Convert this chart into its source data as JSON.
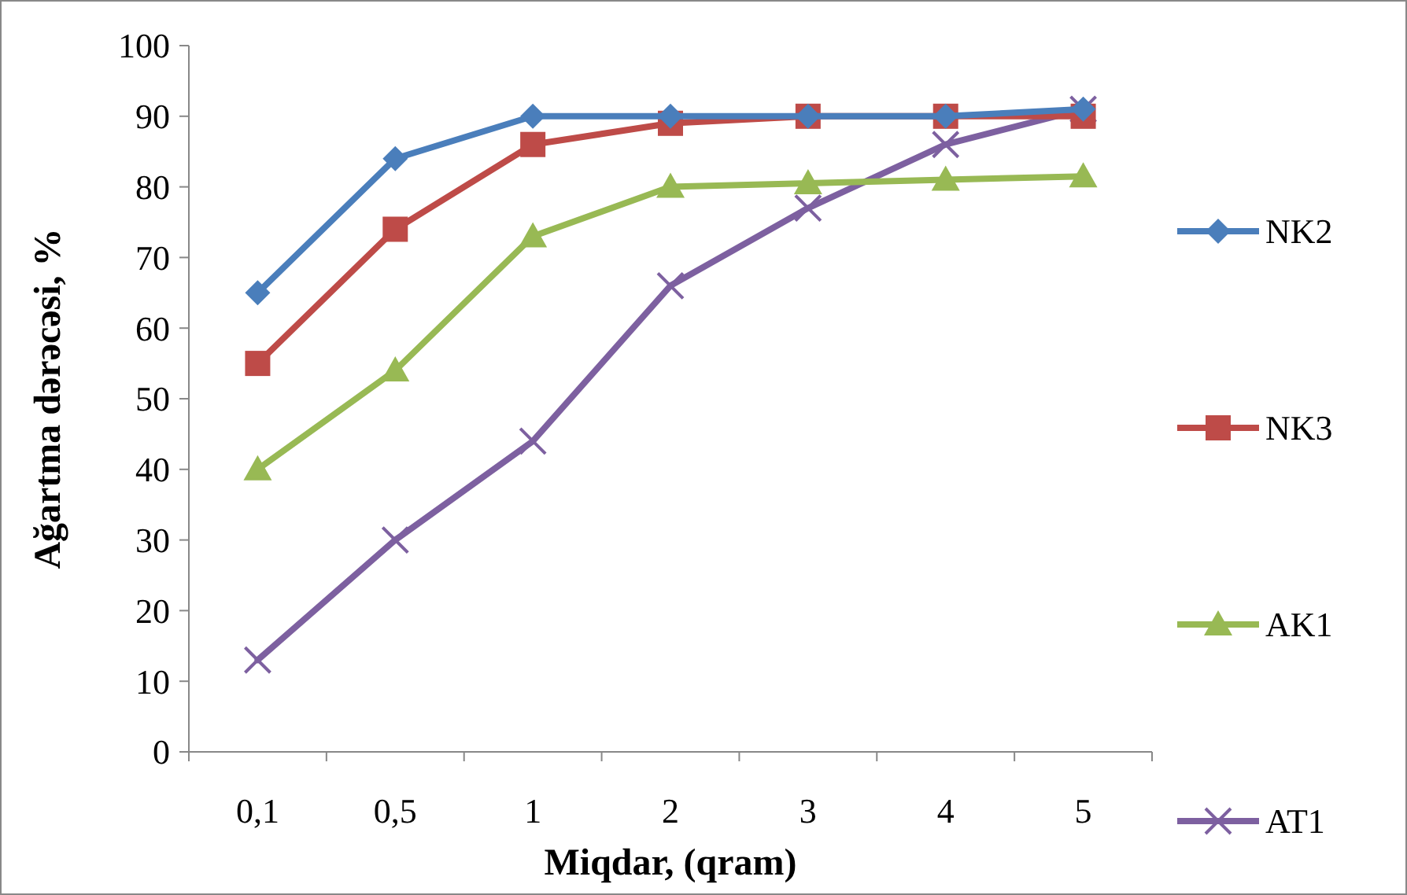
{
  "chart_data": {
    "type": "line",
    "xlabel": "Miqdar, (qram)",
    "ylabel": "Ağartma dərəcəsi, %",
    "categories": [
      "0,1",
      "0,5",
      "1",
      "2",
      "3",
      "4",
      "5"
    ],
    "ylim": [
      0,
      100
    ],
    "yticks": [
      0,
      10,
      20,
      30,
      40,
      50,
      60,
      70,
      80,
      90,
      100
    ],
    "grid": false,
    "legend": "right",
    "line_style": "solid",
    "series": [
      {
        "name": "NK2",
        "color": "#4a7ebb",
        "marker": "diamond",
        "values": [
          65,
          84,
          90,
          90,
          90,
          90,
          91
        ]
      },
      {
        "name": "NK3",
        "color": "#be4b48",
        "marker": "square",
        "values": [
          55,
          74,
          86,
          89,
          90,
          90,
          90
        ]
      },
      {
        "name": "AK1",
        "color": "#98b954",
        "marker": "triangle",
        "values": [
          40,
          54,
          73,
          80,
          80.5,
          81,
          81.5
        ]
      },
      {
        "name": "AT1",
        "color": "#7d60a0",
        "marker": "cross",
        "values": [
          13,
          30,
          44,
          66,
          77,
          86,
          91
        ]
      }
    ]
  }
}
